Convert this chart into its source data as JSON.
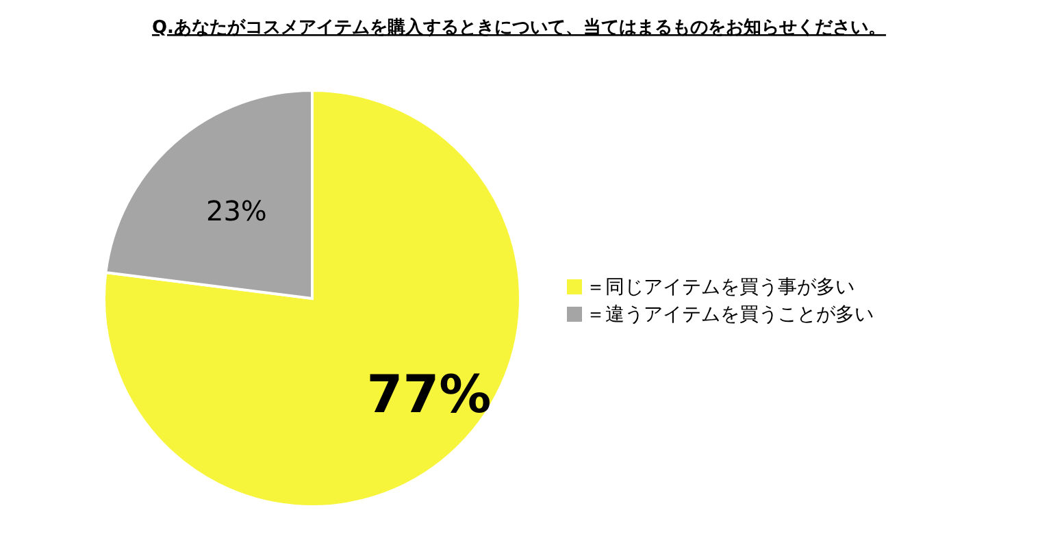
{
  "chart_data": {
    "type": "pie",
    "title": "Q.あなたがコスメアイテムを購入するときについて、当てはまるものをお知らせください。",
    "categories": [
      "＝同じアイテムを買う事が多い",
      "＝違うアイテムを買うことが多い"
    ],
    "values": [
      77,
      23
    ],
    "colors": [
      "#f7f53b",
      "#a5a5a5"
    ],
    "value_labels": [
      "77%",
      "23%"
    ],
    "legend": "right"
  }
}
